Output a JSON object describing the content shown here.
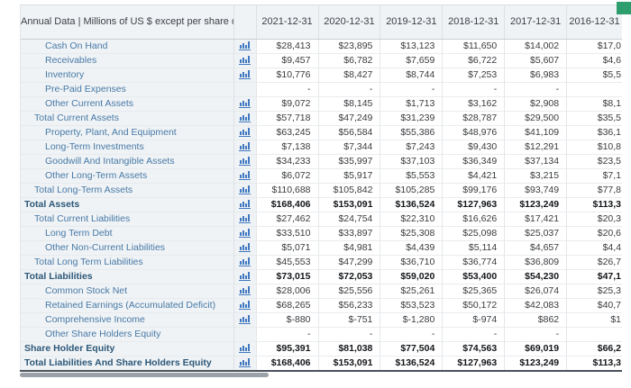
{
  "table": {
    "header_label": "Annual Data | Millions of US $ except per share data",
    "columns": [
      "2021-12-31",
      "2020-12-31",
      "2019-12-31",
      "2018-12-31",
      "2017-12-31",
      "2016-12-31"
    ],
    "chart_icon": "bar-chart-icon",
    "rows": [
      {
        "label": "Cash On Hand",
        "level": 2,
        "chart": true,
        "bold": false,
        "values": [
          "$28,413",
          "$23,895",
          "$13,123",
          "$11,650",
          "$14,002",
          "$17,0"
        ]
      },
      {
        "label": "Receivables",
        "level": 2,
        "chart": true,
        "bold": false,
        "values": [
          "$9,457",
          "$6,782",
          "$7,659",
          "$6,722",
          "$5,607",
          "$4,6"
        ]
      },
      {
        "label": "Inventory",
        "level": 2,
        "chart": true,
        "bold": false,
        "values": [
          "$10,776",
          "$8,427",
          "$8,744",
          "$7,253",
          "$6,983",
          "$5,5"
        ]
      },
      {
        "label": "Pre-Paid Expenses",
        "level": 2,
        "chart": false,
        "bold": false,
        "values": [
          "-",
          "-",
          "-",
          "-",
          "-",
          ""
        ]
      },
      {
        "label": "Other Current Assets",
        "level": 2,
        "chart": true,
        "bold": false,
        "values": [
          "$9,072",
          "$8,145",
          "$1,713",
          "$3,162",
          "$2,908",
          "$8,1"
        ]
      },
      {
        "label": "Total Current Assets",
        "level": 1,
        "chart": true,
        "bold": false,
        "values": [
          "$57,718",
          "$47,249",
          "$31,239",
          "$28,787",
          "$29,500",
          "$35,5"
        ]
      },
      {
        "label": "Property, Plant, And Equipment",
        "level": 2,
        "chart": true,
        "bold": false,
        "values": [
          "$63,245",
          "$56,584",
          "$55,386",
          "$48,976",
          "$41,109",
          "$36,1"
        ]
      },
      {
        "label": "Long-Term Investments",
        "level": 2,
        "chart": true,
        "bold": false,
        "values": [
          "$7,138",
          "$7,344",
          "$7,243",
          "$9,430",
          "$12,291",
          "$10,8"
        ]
      },
      {
        "label": "Goodwill And Intangible Assets",
        "level": 2,
        "chart": true,
        "bold": false,
        "values": [
          "$34,233",
          "$35,997",
          "$37,103",
          "$36,349",
          "$37,134",
          "$23,5"
        ]
      },
      {
        "label": "Other Long-Term Assets",
        "level": 2,
        "chart": true,
        "bold": false,
        "values": [
          "$6,072",
          "$5,917",
          "$5,553",
          "$4,421",
          "$3,215",
          "$7,1"
        ]
      },
      {
        "label": "Total Long-Term Assets",
        "level": 1,
        "chart": true,
        "bold": false,
        "values": [
          "$110,688",
          "$105,842",
          "$105,285",
          "$99,176",
          "$93,749",
          "$77,8"
        ]
      },
      {
        "label": "Total Assets",
        "level": 0,
        "chart": true,
        "bold": true,
        "values": [
          "$168,406",
          "$153,091",
          "$136,524",
          "$127,963",
          "$123,249",
          "$113,3"
        ]
      },
      {
        "label": "Total Current Liabilities",
        "level": 1,
        "chart": true,
        "bold": false,
        "values": [
          "$27,462",
          "$24,754",
          "$22,310",
          "$16,626",
          "$17,421",
          "$20,3"
        ]
      },
      {
        "label": "Long Term Debt",
        "level": 2,
        "chart": true,
        "bold": false,
        "values": [
          "$33,510",
          "$33,897",
          "$25,308",
          "$25,098",
          "$25,037",
          "$20,6"
        ]
      },
      {
        "label": "Other Non-Current Liabilities",
        "level": 2,
        "chart": true,
        "bold": false,
        "values": [
          "$5,071",
          "$4,981",
          "$4,439",
          "$5,114",
          "$4,657",
          "$4,4"
        ]
      },
      {
        "label": "Total Long Term Liabilities",
        "level": 1,
        "chart": true,
        "bold": false,
        "values": [
          "$45,553",
          "$47,299",
          "$36,710",
          "$36,774",
          "$36,809",
          "$26,7"
        ]
      },
      {
        "label": "Total Liabilities",
        "level": 0,
        "chart": true,
        "bold": true,
        "values": [
          "$73,015",
          "$72,053",
          "$59,020",
          "$53,400",
          "$54,230",
          "$47,1"
        ]
      },
      {
        "label": "Common Stock Net",
        "level": 2,
        "chart": true,
        "bold": false,
        "values": [
          "$28,006",
          "$25,556",
          "$25,261",
          "$25,365",
          "$26,074",
          "$25,3"
        ]
      },
      {
        "label": "Retained Earnings (Accumulated Deficit)",
        "level": 2,
        "chart": true,
        "bold": false,
        "values": [
          "$68,265",
          "$56,233",
          "$53,523",
          "$50,172",
          "$42,083",
          "$40,7"
        ]
      },
      {
        "label": "Comprehensive Income",
        "level": 2,
        "chart": true,
        "bold": false,
        "values": [
          "$-880",
          "$-751",
          "$-1,280",
          "$-974",
          "$862",
          "$1"
        ]
      },
      {
        "label": "Other Share Holders Equity",
        "level": 2,
        "chart": false,
        "bold": false,
        "values": [
          "-",
          "-",
          "-",
          "-",
          "-",
          ""
        ]
      },
      {
        "label": "Share Holder Equity",
        "level": 0,
        "chart": true,
        "bold": true,
        "values": [
          "$95,391",
          "$81,038",
          "$77,504",
          "$74,563",
          "$69,019",
          "$66,2"
        ]
      },
      {
        "label": "Total Liabilities And Share Holders Equity",
        "level": 0,
        "chart": true,
        "bold": true,
        "values": [
          "$168,406",
          "$153,091",
          "$136,524",
          "$127,963",
          "$123,249",
          "$113,3"
        ]
      }
    ]
  },
  "colors": {
    "icon_blue": "#3f78c0",
    "link_blue": "#4679a7",
    "bold_blue": "#2c5879",
    "partial_button_green": "#2f9e6e",
    "scrollbar_thumb": "#9aa1a8"
  }
}
